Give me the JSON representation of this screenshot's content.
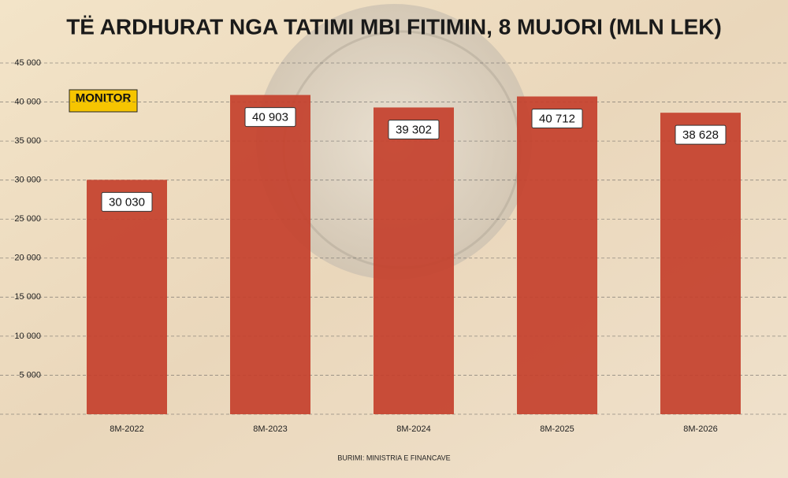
{
  "logo": "MONITOR",
  "chart_data": {
    "type": "bar",
    "title": "TË ARDHURAT NGA TATIMI MBI FITIMIN,  8 MUJORI (MLN LEK)",
    "categories": [
      "8M-2022",
      "8M-2023",
      "8M-2024",
      "8M-2025",
      "8M-2026"
    ],
    "values": [
      30030,
      40903,
      39302,
      40712,
      38628
    ],
    "value_labels": [
      "30 030",
      "40 903",
      "39 302",
      "40 712",
      "38 628"
    ],
    "color": "#c4402c",
    "ylim": [
      0,
      45000
    ],
    "yticks": [
      {
        "value": 0,
        "label": "-"
      },
      {
        "value": 5000,
        "label": "5 000"
      },
      {
        "value": 10000,
        "label": "10 000"
      },
      {
        "value": 15000,
        "label": "15 000"
      },
      {
        "value": 20000,
        "label": "20 000"
      },
      {
        "value": 25000,
        "label": "25 000"
      },
      {
        "value": 30000,
        "label": "30 000"
      },
      {
        "value": 35000,
        "label": "35 000"
      },
      {
        "value": 40000,
        "label": "40 000"
      },
      {
        "value": 45000,
        "label": "45 000"
      }
    ],
    "grid": true,
    "source": "BURIMI: MINISTRIA E FINANCAVE"
  }
}
